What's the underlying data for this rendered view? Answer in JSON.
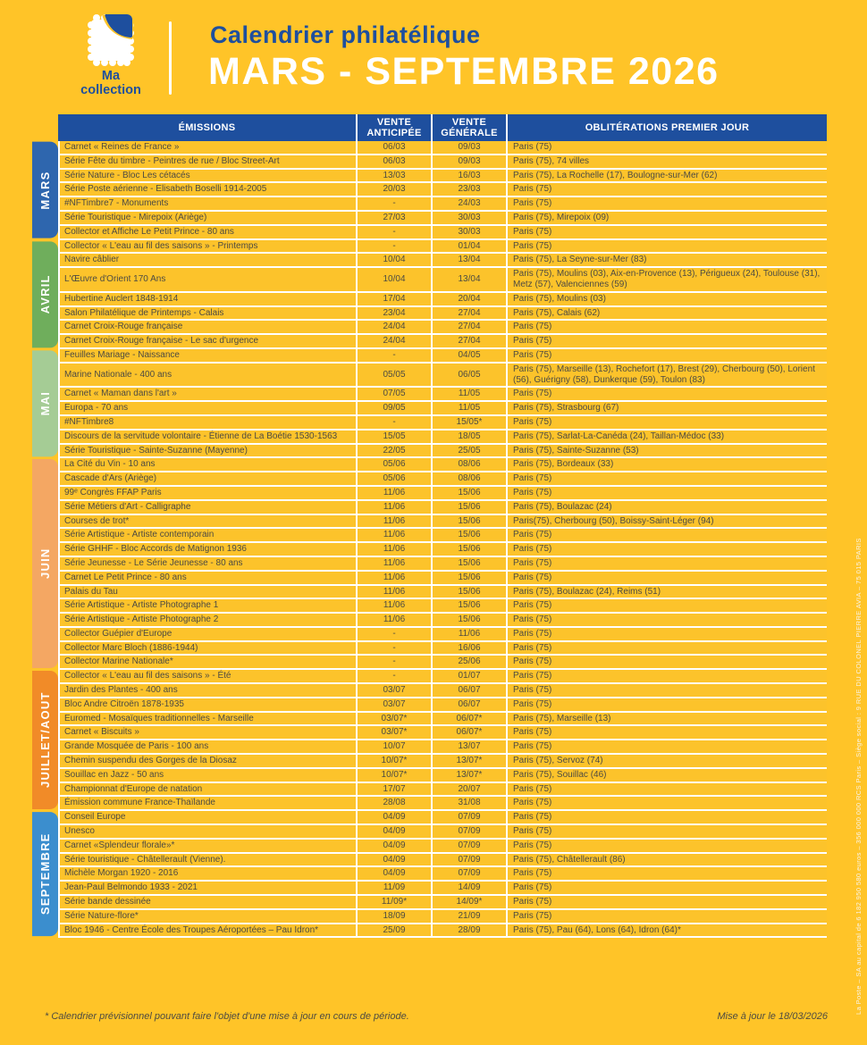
{
  "colors": {
    "background": "#FFC428",
    "header_blue": "#1E4F9E",
    "row_yellow": "#FCC32B",
    "text": "#4d4b42",
    "mars": "#2E66AE",
    "avril": "#6FAE5C",
    "mai": "#A5CC95",
    "juin": "#F4A763",
    "juillet_aout": "#F18B28",
    "septembre": "#3B8ECE"
  },
  "brand": {
    "line1": "Ma",
    "line2": "collection",
    "logo_icon": "stamp-icon"
  },
  "header": {
    "subtitle": "Calendrier philatélique",
    "title": "MARS - SEPTEMBRE 2026"
  },
  "table": {
    "columns": [
      "ÉMISSIONS",
      "VENTE ANTICIPÉE",
      "VENTE GÉNÉRALE",
      "OBLITÉRATIONS PREMIER JOUR"
    ]
  },
  "months": [
    {
      "label": "MARS",
      "color": "#2E66AE",
      "rows": [
        {
          "emission": "Carnet « Reines de France »",
          "anticipee": "06/03",
          "generale": "09/03",
          "obliterations": "Paris (75)"
        },
        {
          "emission": "Série Fête du timbre - Peintres de rue / Bloc Street-Art",
          "anticipee": "06/03",
          "generale": "09/03",
          "obliterations": "Paris (75), 74 villes"
        },
        {
          "emission": "Série Nature - Bloc Les cétacés",
          "anticipee": "13/03",
          "generale": "16/03",
          "obliterations": "Paris (75), La Rochelle (17), Boulogne-sur-Mer (62)"
        },
        {
          "emission": "Série Poste aérienne - Elisabeth Boselli 1914-2005",
          "anticipee": "20/03",
          "generale": "23/03",
          "obliterations": "Paris (75)"
        },
        {
          "emission": "#NFTimbre7 - Monuments",
          "anticipee": "-",
          "generale": "24/03",
          "obliterations": "Paris (75)"
        },
        {
          "emission": "Série Touristique - Mirepoix (Ariège)",
          "anticipee": "27/03",
          "generale": "30/03",
          "obliterations": "Paris (75), Mirepoix (09)"
        },
        {
          "emission": "Collector et Affiche Le Petit Prince - 80 ans",
          "anticipee": "-",
          "generale": "30/03",
          "obliterations": "Paris (75)"
        }
      ]
    },
    {
      "label": "AVRIL",
      "color": "#6FAE5C",
      "rows": [
        {
          "emission": "Collector « L'eau au fil des saisons » - Printemps",
          "anticipee": "-",
          "generale": "01/04",
          "obliterations": "Paris (75)"
        },
        {
          "emission": "Navire câblier",
          "anticipee": "10/04",
          "generale": "13/04",
          "obliterations": "Paris (75), La Seyne-sur-Mer (83)"
        },
        {
          "emission": "L'Œuvre d'Orient 170 Ans",
          "anticipee": "10/04",
          "generale": "13/04",
          "obliterations": "Paris (75), Moulins (03), Aix-en-Provence (13), Périgueux (24), Toulouse (31), Metz (57), Valenciennes (59)"
        },
        {
          "emission": "Hubertine Auclert 1848-1914",
          "anticipee": "17/04",
          "generale": "20/04",
          "obliterations": "Paris (75), Moulins (03)"
        },
        {
          "emission": "Salon Philatélique de Printemps - Calais",
          "anticipee": "23/04",
          "generale": "27/04",
          "obliterations": "Paris (75), Calais (62)"
        },
        {
          "emission": "Carnet Croix-Rouge française",
          "anticipee": "24/04",
          "generale": "27/04",
          "obliterations": "Paris (75)"
        },
        {
          "emission": "Carnet Croix-Rouge française - Le sac d'urgence",
          "anticipee": "24/04",
          "generale": "27/04",
          "obliterations": "Paris (75)"
        }
      ]
    },
    {
      "label": "MAI",
      "color": "#A5CC95",
      "rows": [
        {
          "emission": "Feuilles Mariage - Naissance",
          "anticipee": "-",
          "generale": "04/05",
          "obliterations": "Paris (75)"
        },
        {
          "emission": "Marine Nationale - 400 ans",
          "anticipee": "05/05",
          "generale": "06/05",
          "obliterations": "Paris (75), Marseille (13), Rochefort (17), Brest (29), Cherbourg (50), Lorient (56), Guérigny (58), Dunkerque (59), Toulon (83)"
        },
        {
          "emission": "Carnet « Maman dans l'art »",
          "anticipee": "07/05",
          "generale": "11/05",
          "obliterations": "Paris (75)"
        },
        {
          "emission": "Europa - 70 ans",
          "anticipee": "09/05",
          "generale": "11/05",
          "obliterations": "Paris (75), Strasbourg (67)"
        },
        {
          "emission": "#NFTimbre8",
          "anticipee": "-",
          "generale": "15/05*",
          "obliterations": "Paris (75)"
        },
        {
          "emission": "Discours de la servitude volontaire - Étienne de La Boétie 1530-1563",
          "anticipee": "15/05",
          "generale": "18/05",
          "obliterations": "Paris (75), Sarlat-La-Canéda (24), Taillan-Médoc (33)"
        },
        {
          "emission": "Série Touristique - Sainte-Suzanne (Mayenne)",
          "anticipee": "22/05",
          "generale": "25/05",
          "obliterations": "Paris (75), Sainte-Suzanne (53)"
        }
      ]
    },
    {
      "label": "JUIN",
      "color": "#F4A763",
      "rows": [
        {
          "emission": "La Cité du Vin - 10 ans",
          "anticipee": "05/06",
          "generale": "08/06",
          "obliterations": "Paris (75), Bordeaux (33)"
        },
        {
          "emission": "Cascade d'Ars (Ariège)",
          "anticipee": "05/06",
          "generale": "08/06",
          "obliterations": "Paris (75)"
        },
        {
          "emission": "99ᵉ Congrès FFAP Paris",
          "anticipee": "11/06",
          "generale": "15/06",
          "obliterations": "Paris (75)"
        },
        {
          "emission": "Série Métiers d'Art - Calligraphe",
          "anticipee": "11/06",
          "generale": "15/06",
          "obliterations": "Paris (75), Boulazac (24)"
        },
        {
          "emission": "Courses de trot*",
          "anticipee": "11/06",
          "generale": "15/06",
          "obliterations": "Paris(75), Cherbourg (50), Boissy-Saint-Léger (94)"
        },
        {
          "emission": "Série Artistique - Artiste contemporain",
          "anticipee": "11/06",
          "generale": "15/06",
          "obliterations": "Paris (75)"
        },
        {
          "emission": "Série GHHF - Bloc Accords de Matignon 1936",
          "anticipee": "11/06",
          "generale": "15/06",
          "obliterations": "Paris (75)"
        },
        {
          "emission": "Série Jeunesse - Le Série Jeunesse - 80 ans",
          "anticipee": "11/06",
          "generale": "15/06",
          "obliterations": "Paris (75)"
        },
        {
          "emission": "Carnet Le Petit Prince - 80 ans",
          "anticipee": "11/06",
          "generale": "15/06",
          "obliterations": "Paris (75)"
        },
        {
          "emission": "Palais du Tau",
          "anticipee": "11/06",
          "generale": "15/06",
          "obliterations": "Paris (75), Boulazac (24), Reims (51)"
        },
        {
          "emission": "Série Artistique - Artiste Photographe 1",
          "anticipee": "11/06",
          "generale": "15/06",
          "obliterations": "Paris (75)"
        },
        {
          "emission": "Série Artistique - Artiste Photographe 2",
          "anticipee": "11/06",
          "generale": "15/06",
          "obliterations": "Paris (75)"
        },
        {
          "emission": "Collector Guépier d'Europe",
          "anticipee": "-",
          "generale": "11/06",
          "obliterations": "Paris (75)"
        },
        {
          "emission": "Collector Marc Bloch (1886-1944)",
          "anticipee": "-",
          "generale": "16/06",
          "obliterations": "Paris (75)"
        },
        {
          "emission": "Collector Marine Nationale*",
          "anticipee": "-",
          "generale": "25/06",
          "obliterations": "Paris (75)"
        }
      ]
    },
    {
      "label": "JUILLET/AOUT",
      "color": "#F18B28",
      "rows": [
        {
          "emission": "Collector « L'eau au fil des saisons » - Été",
          "anticipee": "-",
          "generale": "01/07",
          "obliterations": "Paris (75)"
        },
        {
          "emission": "Jardin des Plantes - 400 ans",
          "anticipee": "03/07",
          "generale": "06/07",
          "obliterations": "Paris (75)"
        },
        {
          "emission": "Bloc Andre Citroën 1878-1935",
          "anticipee": "03/07",
          "generale": "06/07",
          "obliterations": "Paris (75)"
        },
        {
          "emission": "Euromed - Mosaïques traditionnelles - Marseille",
          "anticipee": "03/07*",
          "generale": "06/07*",
          "obliterations": "Paris (75), Marseille (13)"
        },
        {
          "emission": "Carnet « Biscuits »",
          "anticipee": "03/07*",
          "generale": "06/07*",
          "obliterations": "Paris (75)"
        },
        {
          "emission": "Grande Mosquée de Paris - 100 ans",
          "anticipee": "10/07",
          "generale": "13/07",
          "obliterations": "Paris (75)"
        },
        {
          "emission": "Chemin suspendu des Gorges de la Diosaz",
          "anticipee": "10/07*",
          "generale": "13/07*",
          "obliterations": "Paris (75), Servoz (74)"
        },
        {
          "emission": "Souillac en Jazz - 50 ans",
          "anticipee": "10/07*",
          "generale": "13/07*",
          "obliterations": "Paris (75), Souillac (46)"
        },
        {
          "emission": "Championnat d'Europe de natation",
          "anticipee": "17/07",
          "generale": "20/07",
          "obliterations": "Paris (75)"
        },
        {
          "emission": "Émission commune France-Thaïlande",
          "anticipee": "28/08",
          "generale": "31/08",
          "obliterations": "Paris (75)"
        }
      ]
    },
    {
      "label": "SEPTEMBRE",
      "color": "#3B8ECE",
      "rows": [
        {
          "emission": "Conseil Europe",
          "anticipee": "04/09",
          "generale": "07/09",
          "obliterations": "Paris (75)"
        },
        {
          "emission": "Unesco",
          "anticipee": "04/09",
          "generale": "07/09",
          "obliterations": "Paris (75)"
        },
        {
          "emission": "Carnet «Splendeur florale»*",
          "anticipee": "04/09",
          "generale": "07/09",
          "obliterations": "Paris (75)"
        },
        {
          "emission": "Série touristique - Châtellerault (Vienne).",
          "anticipee": "04/09",
          "generale": "07/09",
          "obliterations": "Paris (75), Châtellerault (86)"
        },
        {
          "emission": "Michèle Morgan 1920 - 2016",
          "anticipee": "04/09",
          "generale": "07/09",
          "obliterations": "Paris (75)"
        },
        {
          "emission": "Jean-Paul Belmondo 1933 - 2021",
          "anticipee": "11/09",
          "generale": "14/09",
          "obliterations": "Paris (75)"
        },
        {
          "emission": "Série bande dessinée",
          "anticipee": "11/09*",
          "generale": "14/09*",
          "obliterations": "Paris (75)"
        },
        {
          "emission": "Série Nature-flore*",
          "anticipee": "18/09",
          "generale": "21/09",
          "obliterations": "Paris (75)"
        },
        {
          "emission": "Bloc 1946 - Centre École des Troupes Aéroportées – Pau Idron*",
          "anticipee": "25/09",
          "generale": "28/09",
          "obliterations": "Paris (75), Pau (64), Lons (64), Idron (64)*"
        }
      ]
    }
  ],
  "footer": {
    "footnote": "* Calendrier prévisionnel pouvant faire l'objet d'une mise à jour en cours de période.",
    "updated": "Mise à jour le 18/03/2026"
  },
  "side_caption": "La Poste – SA au capital de 6 182 950 580 euros – 356 000 000 RCS Paris – Siège social : 9 RUE DU COLONEL PIERRE AVIA – 75 015 PARIS"
}
